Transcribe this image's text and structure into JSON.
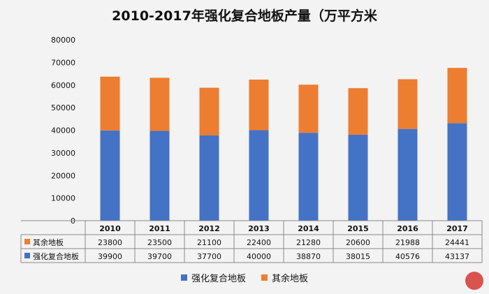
{
  "chart_data": {
    "type": "bar",
    "stacked": true,
    "title": "2010-2017年强化复合地板产量（万平方米",
    "categories": [
      "2010",
      "2011",
      "2012",
      "2013",
      "2014",
      "2015",
      "2016",
      "2017"
    ],
    "series": [
      {
        "name": "强化复合地板",
        "color": "#4472c4",
        "values": [
          39900,
          39700,
          37700,
          40000,
          38870,
          38015,
          40576,
          43137
        ]
      },
      {
        "name": "其余地板",
        "color": "#ed7d31",
        "values": [
          23800,
          23500,
          21100,
          22400,
          21280,
          20600,
          21988,
          24441
        ]
      }
    ],
    "ylim": [
      0,
      80000
    ],
    "yticks": [
      "0",
      "10000",
      "20000",
      "30000",
      "40000",
      "50000",
      "60000",
      "70000",
      "80000"
    ],
    "grid": false,
    "data_table": true,
    "legend_position": "bottom"
  }
}
